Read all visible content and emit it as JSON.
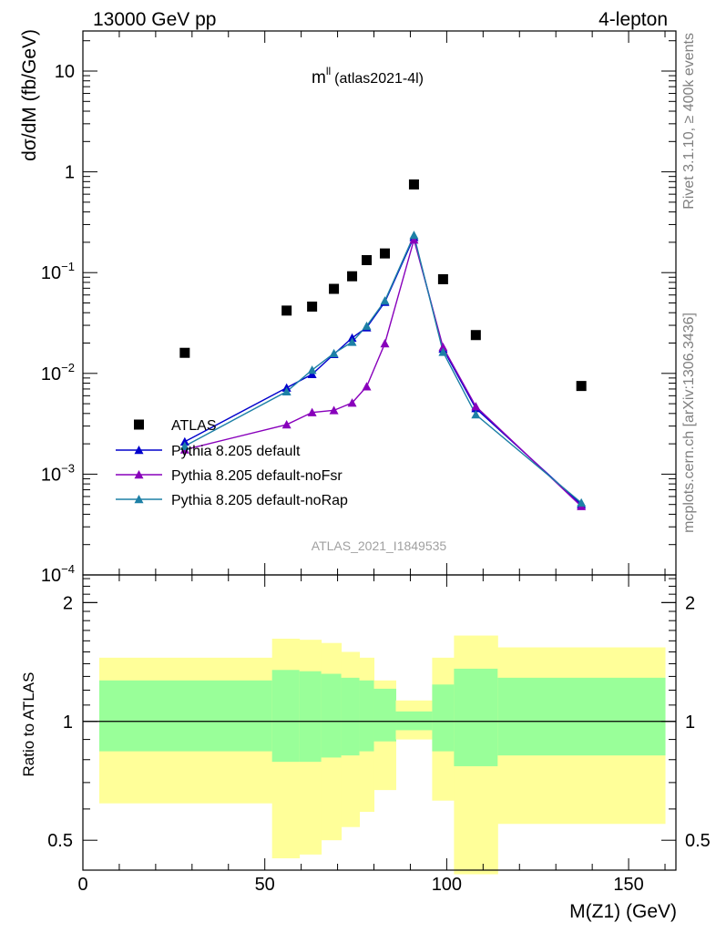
{
  "header": {
    "left": "13000 GeV pp",
    "right": "4-lepton"
  },
  "side_labels": {
    "rivet": "Rivet 3.1.10, ≥ 400k events",
    "mcplots": "mcplots.cern.ch [arXiv:1306.3436]"
  },
  "chart_data": [
    {
      "type": "scatter",
      "panel": "main",
      "title_main": "m",
      "title_sup": "ll",
      "title_note": "(atlas2021-4l)",
      "watermark": "ATLAS_2021_I1849535",
      "ylabel": "dσ/dM (fb/GeV)",
      "yscale": "log",
      "ylim": [
        0.0001,
        25
      ],
      "xlim": [
        0,
        163
      ],
      "ytick_labels": [
        {
          "v": 10,
          "base": "10",
          "exp": ""
        },
        {
          "v": 1,
          "base": "1",
          "exp": ""
        },
        {
          "v": 0.1,
          "base": "10",
          "exp": "−1"
        },
        {
          "v": 0.01,
          "base": "10",
          "exp": "−2"
        },
        {
          "v": 0.001,
          "base": "10",
          "exp": "−3"
        },
        {
          "v": 0.0001,
          "base": "10",
          "exp": "−4"
        }
      ],
      "series": [
        {
          "name": "ATLAS",
          "color": "#000000",
          "marker": "square",
          "x": [
            28,
            56,
            63,
            69,
            74,
            78,
            83,
            91,
            99,
            108,
            137
          ],
          "y": [
            0.016,
            0.042,
            0.046,
            0.069,
            0.092,
            0.133,
            0.155,
            0.75,
            0.086,
            0.024,
            0.0075
          ]
        },
        {
          "name": "Pythia 8.205 default",
          "color": "#0000cc",
          "marker": "triangle",
          "x": [
            28,
            56,
            63,
            69,
            74,
            78,
            83,
            91,
            99,
            108,
            137
          ],
          "y": [
            0.0021,
            0.0072,
            0.0098,
            0.0155,
            0.0225,
            0.0285,
            0.051,
            0.225,
            0.0175,
            0.0045,
            0.0005
          ]
        },
        {
          "name": "Pythia 8.205 default-noFsr",
          "color": "#8800bb",
          "marker": "triangle",
          "x": [
            28,
            56,
            63,
            69,
            74,
            78,
            83,
            91,
            99,
            108,
            137
          ],
          "y": [
            0.00175,
            0.0031,
            0.0041,
            0.0043,
            0.0051,
            0.0074,
            0.0198,
            0.212,
            0.0182,
            0.0047,
            0.00048
          ]
        },
        {
          "name": "Pythia 8.205 default-noRap",
          "color": "#1d80a6",
          "marker": "triangle",
          "x": [
            28,
            56,
            63,
            69,
            74,
            78,
            83,
            91,
            99,
            108,
            137
          ],
          "y": [
            0.0019,
            0.0066,
            0.0108,
            0.0158,
            0.0205,
            0.0295,
            0.0525,
            0.235,
            0.0163,
            0.0039,
            0.00052
          ]
        }
      ]
    },
    {
      "type": "area",
      "panel": "ratio",
      "ylabel": "Ratio to ATLAS",
      "xlabel": "M(Z1) (GeV)",
      "yscale": "log",
      "ylim": [
        0.42,
        2.35
      ],
      "xlim": [
        0,
        163
      ],
      "xtick_labels": [
        {
          "v": 0,
          "label": "0"
        },
        {
          "v": 50,
          "label": "50"
        },
        {
          "v": 100,
          "label": "100"
        },
        {
          "v": 150,
          "label": "150"
        }
      ],
      "ytick_labels": [
        {
          "v": 2,
          "label": "2"
        },
        {
          "v": 1,
          "label": "1"
        },
        {
          "v": 0.5,
          "label": "0.5"
        }
      ],
      "bin_edges": [
        4.5,
        52,
        59.5,
        65.5,
        71,
        76,
        80,
        86,
        96,
        102,
        114,
        160
      ],
      "stat_up": [
        1.27,
        1.35,
        1.34,
        1.32,
        1.29,
        1.27,
        1.21,
        1.06,
        1.24,
        1.36,
        1.29
      ],
      "stat_down": [
        0.84,
        0.79,
        0.79,
        0.81,
        0.82,
        0.84,
        0.89,
        0.95,
        0.84,
        0.77,
        0.82
      ],
      "total_up": [
        1.45,
        1.62,
        1.61,
        1.58,
        1.5,
        1.45,
        1.27,
        1.13,
        1.45,
        1.65,
        1.54
      ],
      "total_down": [
        0.62,
        0.45,
        0.46,
        0.5,
        0.54,
        0.59,
        0.67,
        0.9,
        0.63,
        0.41,
        0.55
      ],
      "stat_color": "#99ff99",
      "total_color": "#ffff99"
    }
  ]
}
